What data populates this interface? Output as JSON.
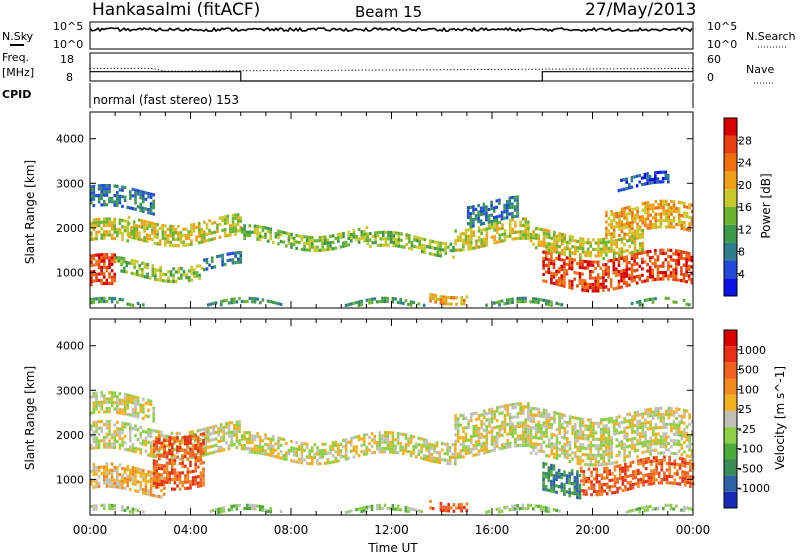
{
  "header": {
    "title": "Hankasalmi (fitACF)",
    "beam": "Beam 15",
    "date": "27/May/2013"
  },
  "strip_nsky": {
    "left_label": "N.Sky",
    "left_ticks": [
      "10^5",
      "10^0"
    ],
    "right_label": "N.Search",
    "right_ticks": [
      "10^5",
      "10^0"
    ]
  },
  "strip_freq": {
    "left_label_line1": "Freq.",
    "left_label_line2": "[MHz]",
    "left_ticks": [
      "18",
      "8"
    ],
    "right_label": "Nave",
    "right_ticks": [
      "60",
      "0"
    ],
    "cpid_label": "CPID"
  },
  "cpid_text": "normal (fast stereo) 153",
  "x_axis": {
    "label": "Time UT",
    "tick_labels": [
      "00:00",
      "04:00",
      "08:00",
      "12:00",
      "16:00",
      "20:00",
      "00:00"
    ]
  },
  "chart_data": [
    {
      "type": "heatmap",
      "quantity": "power",
      "ylabel": "Slant Range [km]",
      "ylim": [
        200,
        4600
      ],
      "y_ticks": [
        "4000",
        "3000",
        "2000",
        "1000"
      ],
      "x_hours": [
        0,
        24
      ],
      "colorbar": {
        "label": "Power [dB]",
        "ticks": [
          "28",
          "24",
          "20",
          "16",
          "12",
          "8",
          "4"
        ],
        "colors": [
          "#0a12e6",
          "#1f4bd8",
          "#2e7c8c",
          "#3c9a4a",
          "#6bb42f",
          "#c8c82a",
          "#f0a018",
          "#f07010",
          "#e84010",
          "#d80000"
        ]
      },
      "echo_bands": [
        {
          "t0": 0.0,
          "t1": 2.5,
          "r0": 2400,
          "r1": 2850,
          "level": 2
        },
        {
          "t0": 0.0,
          "t1": 1.5,
          "r0": 1600,
          "r1": 2100,
          "level": 5
        },
        {
          "t0": 1.5,
          "t1": 6.0,
          "r0": 1700,
          "r1": 2200,
          "level": 5
        },
        {
          "t0": 0.0,
          "t1": 1.0,
          "r0": 600,
          "r1": 1300,
          "level": 8
        },
        {
          "t0": 1.0,
          "t1": 4.5,
          "r0": 900,
          "r1": 1250,
          "level": 4
        },
        {
          "t0": 4.5,
          "t1": 6.0,
          "r0": 1100,
          "r1": 1350,
          "level": 2
        },
        {
          "t0": 6.0,
          "t1": 11.0,
          "r0": 1650,
          "r1": 1950,
          "level": 4
        },
        {
          "t0": 11.0,
          "t1": 14.5,
          "r0": 1500,
          "r1": 1800,
          "level": 4
        },
        {
          "t0": 14.5,
          "t1": 17.5,
          "r0": 1650,
          "r1": 2100,
          "level": 5
        },
        {
          "t0": 15.0,
          "t1": 17.0,
          "r0": 2100,
          "r1": 2600,
          "level": 2
        },
        {
          "t0": 13.5,
          "t1": 15.0,
          "r0": 400,
          "r1": 600,
          "level": 6
        },
        {
          "t0": 17.5,
          "t1": 22.0,
          "r0": 1450,
          "r1": 1900,
          "level": 5
        },
        {
          "t0": 18.0,
          "t1": 24.0,
          "r0": 700,
          "r1": 1400,
          "level": 8
        },
        {
          "t0": 20.5,
          "t1": 24.0,
          "r0": 1900,
          "r1": 2500,
          "level": 6
        },
        {
          "t0": 21.0,
          "t1": 23.0,
          "r0": 2900,
          "r1": 3150,
          "level": 1
        },
        {
          "t0": 0.0,
          "t1": 24.0,
          "r0": 220,
          "r1": 320,
          "level": 3
        }
      ]
    },
    {
      "type": "heatmap",
      "quantity": "velocity",
      "ylabel": "Slant Range [km]",
      "ylim": [
        200,
        4600
      ],
      "y_ticks": [
        "4000",
        "3000",
        "2000",
        "1000"
      ],
      "x_hours": [
        0,
        24
      ],
      "colorbar": {
        "label": "Velocity [m s^-1]",
        "ticks": [
          "1000",
          "500",
          "100",
          "25",
          "-25",
          "-100",
          "-500",
          "-1000"
        ],
        "colors": [
          "#1a2ab8",
          "#2e62a8",
          "#3c8c5a",
          "#4aaa3a",
          "#8ed045",
          "#c0c0b8",
          "#f0b020",
          "#f08a20",
          "#f06020",
          "#e83018",
          "#d80000"
        ]
      },
      "echo_bands": [
        {
          "t0": 0.0,
          "t1": 2.5,
          "r0": 2400,
          "r1": 2850,
          "level": 5
        },
        {
          "t0": 0.0,
          "t1": 6.0,
          "r0": 1600,
          "r1": 2200,
          "level": 5
        },
        {
          "t0": 0.0,
          "t1": 3.0,
          "r0": 700,
          "r1": 1250,
          "level": 6
        },
        {
          "t0": 2.5,
          "t1": 4.5,
          "r0": 900,
          "r1": 2100,
          "level": 8
        },
        {
          "t0": 6.0,
          "t1": 14.5,
          "r0": 1500,
          "r1": 1950,
          "level": 5
        },
        {
          "t0": 14.5,
          "t1": 17.5,
          "r0": 1650,
          "r1": 2600,
          "level": 5
        },
        {
          "t0": 13.5,
          "t1": 15.0,
          "r0": 400,
          "r1": 600,
          "level": 8
        },
        {
          "t0": 17.5,
          "t1": 24.0,
          "r0": 1450,
          "r1": 2500,
          "level": 5
        },
        {
          "t0": 19.5,
          "t1": 24.0,
          "r0": 800,
          "r1": 1400,
          "level": 8
        },
        {
          "t0": 18.0,
          "t1": 19.5,
          "r0": 700,
          "r1": 1300,
          "level": 2
        },
        {
          "t0": 0.0,
          "t1": 24.0,
          "r0": 220,
          "r1": 320,
          "level": 4
        }
      ]
    }
  ],
  "nsky_series": {
    "x": [
      0,
      24
    ],
    "y_fraction": 0.72
  },
  "nsearch_series": {
    "x": [
      0,
      24
    ],
    "y_fraction": 0.74
  },
  "freq_series": {
    "x": [
      0,
      2.5,
      3.0,
      24
    ],
    "mhz": [
      12.5,
      12.5,
      11.5,
      12.5
    ]
  },
  "nave_series": {
    "x": [
      0,
      6,
      6,
      18,
      18,
      24
    ],
    "values": [
      20,
      20,
      0,
      0,
      20,
      20
    ]
  }
}
